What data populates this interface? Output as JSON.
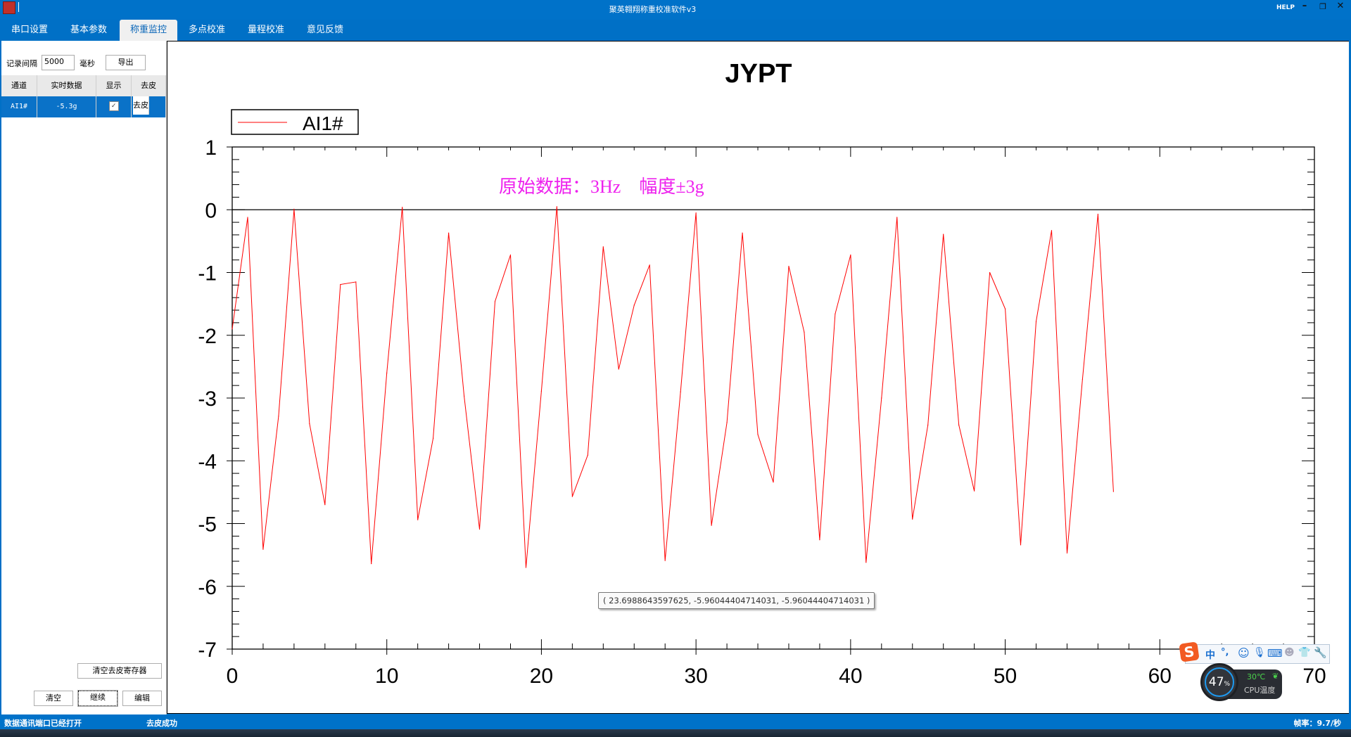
{
  "window": {
    "title": "聚英翱翔称重校准软件v3",
    "help_label": "HELP",
    "minimize_icon": "minimize-icon",
    "restore_icon": "restore-icon",
    "close_icon": "close-icon"
  },
  "tabs": [
    {
      "label": "串口设置",
      "active": false
    },
    {
      "label": "基本参数",
      "active": false
    },
    {
      "label": "称重监控",
      "active": true
    },
    {
      "label": "多点校准",
      "active": false
    },
    {
      "label": "量程校准",
      "active": false
    },
    {
      "label": "意见反馈",
      "active": false
    }
  ],
  "left_panel": {
    "interval_label": "记录间隔",
    "interval_value": "5000",
    "interval_unit": "毫秒",
    "export_button": "导出",
    "table": {
      "headers": [
        "通道",
        "实时数据",
        "显示",
        "去皮"
      ],
      "rows": [
        {
          "channel": "AI1#",
          "value": "-5.3g",
          "show": true,
          "tare_button": "去皮"
        }
      ]
    },
    "clear_tare_button": "清空去皮寄存器",
    "clear_button": "清空",
    "continue_button": "继续",
    "edit_button": "编辑"
  },
  "chart_data": {
    "type": "line",
    "title": "JYPT",
    "annotation": "原始数据：3Hz    幅度±3g",
    "legend_placement": "top-left",
    "xlim": [
      0,
      70
    ],
    "ylim": [
      -7,
      1
    ],
    "x_ticks": [
      0,
      10,
      20,
      30,
      40,
      50,
      60,
      70
    ],
    "y_ticks": [
      1,
      0,
      -1,
      -2,
      -3,
      -4,
      -5,
      -6,
      -7
    ],
    "grid": false,
    "series": [
      {
        "name": "AI1#",
        "color": "#ff0000",
        "x": [
          0,
          1,
          2,
          3,
          4,
          5,
          6,
          7,
          8,
          9,
          10,
          11,
          12,
          13,
          14,
          15,
          16,
          17,
          18,
          19,
          20,
          21,
          22,
          23,
          24,
          25,
          26,
          27,
          28,
          29,
          30,
          31,
          32,
          33,
          34,
          35,
          36,
          37,
          38,
          39,
          40,
          41,
          42,
          43,
          44,
          45,
          46,
          47,
          48,
          49,
          50,
          51,
          52,
          53,
          54,
          55,
          56,
          57
        ],
        "y": [
          -1.9,
          -0.12,
          -5.41,
          -3.29,
          0.01,
          -3.41,
          -4.7,
          -1.19,
          -1.15,
          -5.64,
          -2.6,
          0.04,
          -4.94,
          -3.64,
          -0.37,
          -2.97,
          -5.09,
          -1.46,
          -0.72,
          -5.7,
          -2.89,
          0.05,
          -4.57,
          -3.91,
          -0.59,
          -2.54,
          -1.52,
          -0.88,
          -5.59,
          -2.9,
          -0.05,
          -5.03,
          -3.39,
          -0.37,
          -3.58,
          -4.34,
          -0.9,
          -1.95,
          -5.26,
          -1.66,
          -0.72,
          -5.62,
          -3.0,
          -0.12,
          -4.93,
          -3.43,
          -0.39,
          -3.43,
          -4.48,
          -1.0,
          -1.58,
          -5.34,
          -1.78,
          -0.33,
          -5.47,
          -2.7,
          -0.07,
          -4.49
        ]
      }
    ],
    "tooltip": "( 23.6988643597625, -5.96044404714031, -5.96044404714031 )"
  },
  "status": {
    "port_status": "数据通讯端口已经打开",
    "message": "去皮成功",
    "frame_rate": "帧率：9.7/秒"
  },
  "overlays": {
    "ime_mode": "中",
    "ime_punct": "°,",
    "cpu_usage": "47",
    "cpu_usage_unit": "%",
    "cpu_temp": "30℃",
    "cpu_temp_label": "CPU温度"
  }
}
